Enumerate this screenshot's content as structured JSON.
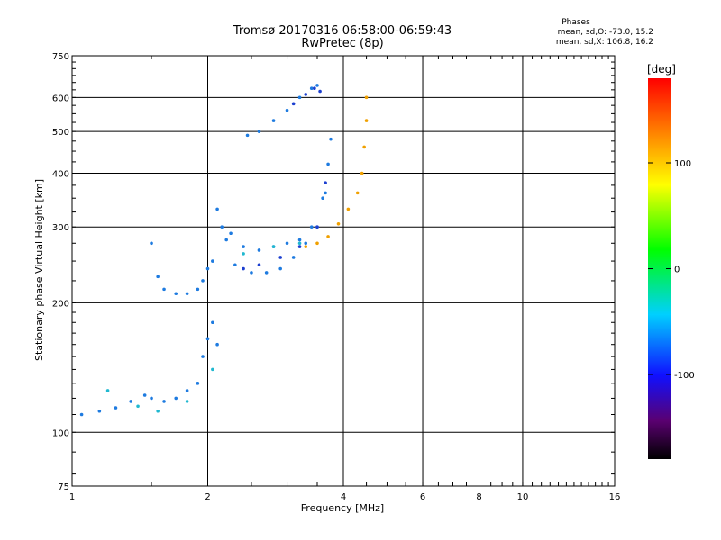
{
  "title_line1": "Tromsø 20170316 06:58:00-06:59:43",
  "title_line2": "RwPretec (8p)",
  "stats": {
    "header": "Phases",
    "o_line": "mean, sd,O: -73.0, 15.2",
    "x_line": "mean, sd,X: 106.8, 16.2"
  },
  "colorbar": {
    "label": "[deg]",
    "ticks": [
      "100",
      "0",
      "-100"
    ],
    "range": [
      -180,
      180
    ]
  },
  "chart_data": {
    "type": "scatter",
    "xlabel": "Frequency [MHz]",
    "ylabel": "Stationary phase Virtual Height [km]",
    "xscale": "log",
    "yscale": "log",
    "xlim": [
      1,
      16
    ],
    "ylim": [
      75,
      750
    ],
    "xticks": [
      1,
      2,
      4,
      6,
      8,
      10,
      16
    ],
    "yticks": [
      75,
      100,
      200,
      300,
      400,
      500,
      600,
      750
    ],
    "xtick_labels": [
      "1",
      "2",
      "4",
      "6",
      "8",
      "10",
      "16"
    ],
    "ytick_labels": [
      "75",
      "100",
      "200",
      "300",
      "400",
      "500",
      "600",
      "750"
    ],
    "grid": true,
    "series": [
      {
        "color": "#1e7be0",
        "x": [
          1.05,
          1.15,
          1.25,
          1.35,
          1.45,
          1.5,
          1.6,
          1.7,
          1.8,
          1.9,
          1.95,
          2.0,
          2.05,
          2.1,
          1.5,
          1.55,
          1.6,
          1.7,
          1.8,
          1.9,
          1.95,
          2.0,
          2.05,
          2.15,
          2.25,
          2.4,
          2.6,
          2.8,
          3.0,
          3.2,
          3.4,
          3.6,
          3.7,
          2.1,
          2.2,
          2.3,
          2.5,
          2.7,
          2.9,
          3.1,
          3.3,
          3.5,
          3.65,
          3.75,
          2.45,
          2.6,
          2.8,
          3.0,
          3.2,
          3.4,
          3.5
        ],
        "y": [
          110,
          112,
          114,
          118,
          122,
          120,
          118,
          120,
          125,
          130,
          150,
          165,
          180,
          160,
          275,
          230,
          215,
          210,
          210,
          215,
          225,
          240,
          250,
          300,
          290,
          270,
          265,
          270,
          275,
          280,
          300,
          350,
          420,
          330,
          280,
          245,
          235,
          235,
          240,
          255,
          275,
          300,
          360,
          480,
          490,
          500,
          530,
          560,
          600,
          630,
          640
        ]
      },
      {
        "color": "#1c3fd0",
        "x": [
          3.1,
          3.3,
          3.45,
          3.55,
          3.65,
          3.5,
          3.2,
          2.9,
          2.6,
          2.4
        ],
        "y": [
          580,
          610,
          630,
          620,
          380,
          300,
          270,
          255,
          245,
          240
        ]
      },
      {
        "color": "#f0a000",
        "x": [
          3.3,
          3.5,
          3.7,
          3.9,
          4.1,
          4.3,
          4.4,
          4.45,
          4.5,
          4.5
        ],
        "y": [
          270,
          275,
          285,
          305,
          330,
          360,
          400,
          460,
          530,
          600
        ]
      },
      {
        "color": "#20b8d0",
        "x": [
          1.2,
          1.4,
          1.55,
          1.8,
          2.05,
          2.4,
          2.8,
          3.2
        ],
        "y": [
          125,
          115,
          112,
          118,
          140,
          260,
          270,
          275
        ]
      }
    ]
  }
}
